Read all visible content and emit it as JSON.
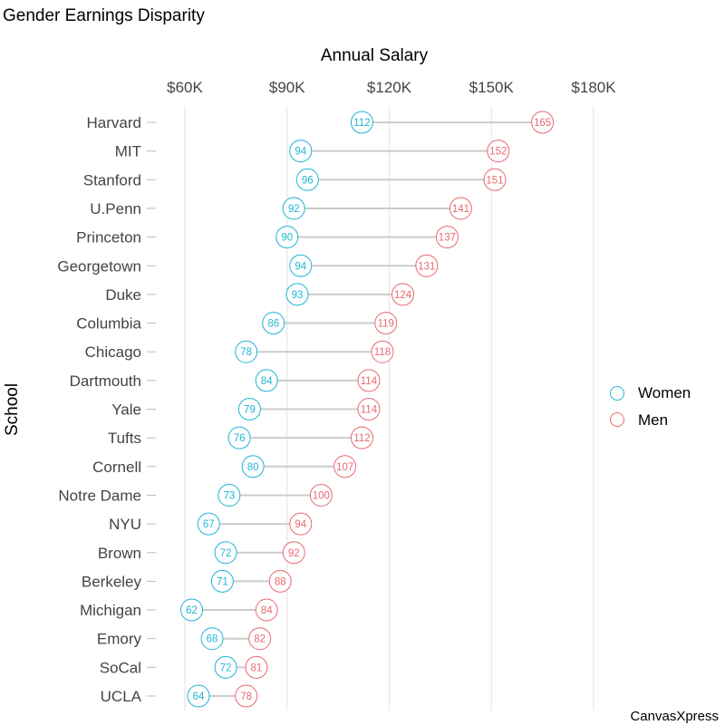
{
  "chart_data": {
    "type": "dumbbell",
    "title": "Gender Earnings Disparity",
    "xlabel": "Annual Salary",
    "ylabel": "School",
    "x_ticks": [
      60,
      90,
      120,
      150,
      180
    ],
    "x_tick_labels": [
      "$60K",
      "$90K",
      "$120K",
      "$150K",
      "$180K"
    ],
    "xlim": [
      60,
      180
    ],
    "grid": "vertical",
    "legend_position": "right",
    "categories": [
      "Harvard",
      "MIT",
      "Stanford",
      "U.Penn",
      "Princeton",
      "Georgetown",
      "Duke",
      "Columbia",
      "Chicago",
      "Dartmouth",
      "Yale",
      "Tufts",
      "Cornell",
      "Notre Dame",
      "NYU",
      "Brown",
      "Berkeley",
      "Michigan",
      "Emory",
      "SoCal",
      "UCLA"
    ],
    "series": [
      {
        "name": "Women",
        "color": "#1FB5D6",
        "values": [
          112,
          94,
          96,
          92,
          90,
          94,
          93,
          86,
          78,
          84,
          79,
          76,
          80,
          73,
          67,
          72,
          71,
          62,
          68,
          72,
          64
        ]
      },
      {
        "name": "Men",
        "color": "#F07178",
        "values": [
          165,
          152,
          151,
          141,
          137,
          131,
          124,
          119,
          118,
          114,
          114,
          112,
          107,
          100,
          94,
          92,
          88,
          84,
          82,
          81,
          78
        ]
      }
    ],
    "legend": [
      "Women",
      "Men"
    ],
    "credit": "CanvasXpress"
  },
  "colors": {
    "women": "#1FB5D6",
    "men": "#E86A71",
    "connector": "#CCCCCC",
    "grid": "#E2E2E2"
  }
}
